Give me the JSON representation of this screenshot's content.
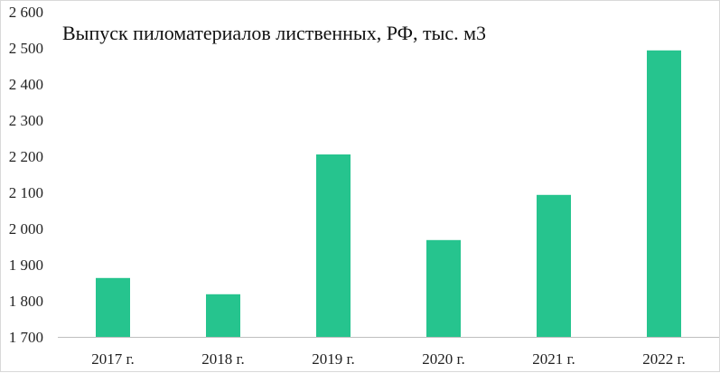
{
  "chart_data": {
    "type": "bar",
    "title": "Выпуск пиломатериалов лиственных, РФ, тыс. м3",
    "categories": [
      "2017 г.",
      "2018 г.",
      "2019 г.",
      "2020 г.",
      "2021 г.",
      "2022 г."
    ],
    "values": [
      1863,
      1818,
      2205,
      1968,
      2093,
      2493
    ],
    "ylim": [
      1700,
      2600
    ],
    "yticks": [
      1700,
      1800,
      1900,
      2000,
      2100,
      2200,
      2300,
      2400,
      2500,
      2600
    ],
    "ytick_labels": [
      "1 700",
      "1 800",
      "1 900",
      "2 000",
      "2 100",
      "2 200",
      "2 300",
      "2 400",
      "2 500",
      "2 600"
    ],
    "grid": false,
    "legend": "none",
    "bar_color": "#26C48E",
    "axis_color": "#bfbfbf"
  }
}
